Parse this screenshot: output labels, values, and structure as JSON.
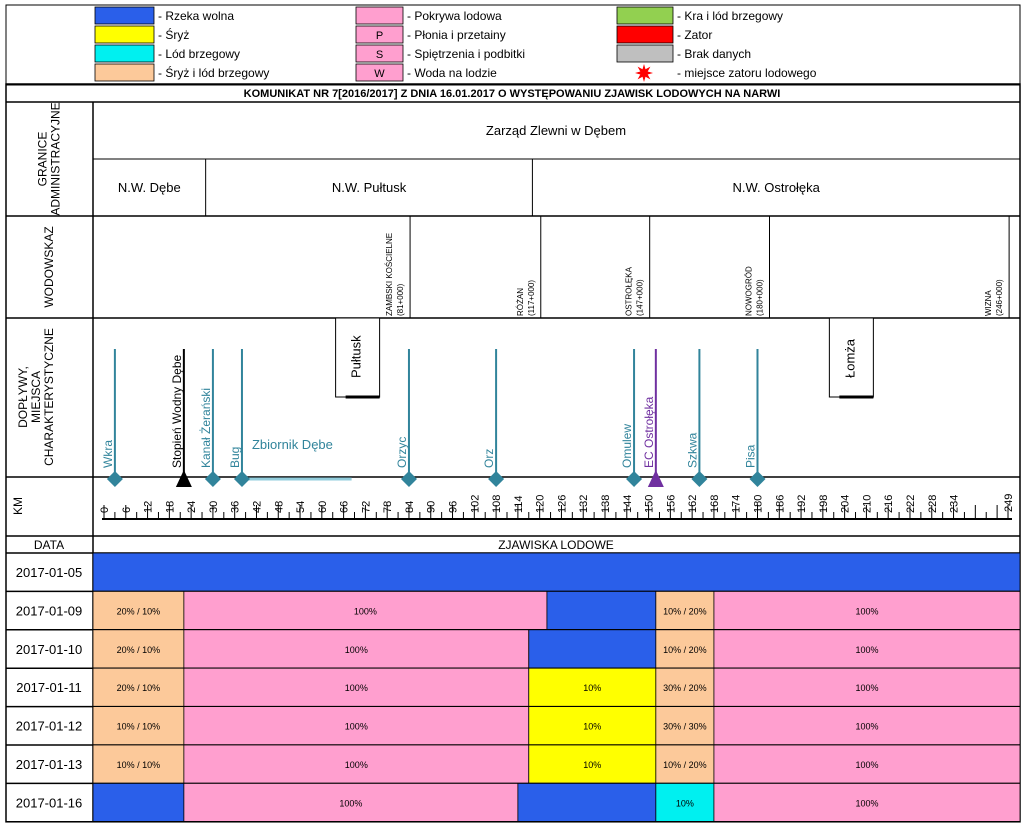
{
  "legend": [
    {
      "swatch": "",
      "color": "#2a5fea",
      "label": "- Rzeka wolna"
    },
    {
      "swatch": "",
      "color": "#ffff00",
      "label": "- Śryż"
    },
    {
      "swatch": "",
      "color": "#00f0f0",
      "label": "- Lód brzegowy"
    },
    {
      "swatch": "",
      "color": "#fcc99a",
      "label": "- Śryż i lód brzegowy"
    },
    {
      "swatch": "",
      "color": "#ff9fcf",
      "label": "- Pokrywa lodowa"
    },
    {
      "swatch": "P",
      "color": "#ff9fcf",
      "label": "- Płonia i przetainy"
    },
    {
      "swatch": "S",
      "color": "#ff9fcf",
      "label": "- Spiętrzenia i podbitki"
    },
    {
      "swatch": "W",
      "color": "#ff9fcf",
      "label": "- Woda na lodzie"
    },
    {
      "swatch": "",
      "color": "#92d050",
      "label": "- Kra i lód brzegowy"
    },
    {
      "swatch": "",
      "color": "#ff0000",
      "label": "- Zator"
    },
    {
      "swatch": "",
      "color": "#bfbfbf",
      "label": "- Brak danych"
    },
    {
      "swatch": "star",
      "color": "#ff0000",
      "label": "- miejsce zatoru lodowego"
    }
  ],
  "title": "KOMUNIKAT NR 7[2016/2017] Z DNIA 16.01.2017 O WYSTĘPOWANIU ZJAWISK LODOWYCH NA NARWI",
  "row_headers": {
    "granice": [
      "GRANICE",
      "ADMINISTRACYJNE"
    ],
    "wodowskaz": "WODOWSKAZ",
    "doplywy": [
      "DOPŁYWY,",
      "MIEJSCA",
      "CHARAKTERYSTYCZNE"
    ],
    "km": "KM",
    "data": "DATA",
    "zjawiska": "ZJAWISKA LODOWE"
  },
  "zarzad": "Zarząd Zlewni w Dębem",
  "nw_sections": [
    {
      "label": "N.W. Dębe",
      "from": 0,
      "to": 28
    },
    {
      "label": "N.W. Pułtusk",
      "from": 28,
      "to": 118
    },
    {
      "label": "N.W. Ostrołęka",
      "from": 118,
      "to": 249
    }
  ],
  "gauges": [
    {
      "name": "ZAMBSKI KOŚCIELNE",
      "chainage": "(81+000)",
      "km": 81
    },
    {
      "name": "RÓŻAN",
      "chainage": "(117+000)",
      "km": 117
    },
    {
      "name": "OSTROŁĘKA",
      "chainage": "(147+000)",
      "km": 147
    },
    {
      "name": "NOWOGRÓD",
      "chainage": "(180+000)",
      "km": 180
    },
    {
      "name": "WIZNA",
      "chainage": "(246+000)",
      "km": 246
    }
  ],
  "tributaries": [
    {
      "name": "Wkra",
      "km": 3,
      "type": "river"
    },
    {
      "name": "Stopień Wodny Dębe",
      "km": 22,
      "type": "dam"
    },
    {
      "name": "Kanał Żerański",
      "km": 30,
      "type": "river"
    },
    {
      "name": "Bug",
      "km": 38,
      "type": "river"
    },
    {
      "name": "Orzyc",
      "km": 84,
      "type": "river"
    },
    {
      "name": "Orz",
      "km": 108,
      "type": "river"
    },
    {
      "name": "Omulew",
      "km": 146,
      "type": "river"
    },
    {
      "name": "EC Ostrołęka",
      "km": 152,
      "type": "plant"
    },
    {
      "name": "Szkwa",
      "km": 164,
      "type": "river"
    },
    {
      "name": "Pisa",
      "km": 180,
      "type": "river"
    }
  ],
  "towns": [
    {
      "name": "Pułtusk",
      "km": 66
    },
    {
      "name": "Łomża",
      "km": 202
    }
  ],
  "reservoir": {
    "name": "Zbiornik Dębe",
    "from": 38,
    "to": 66
  },
  "chart_data": {
    "type": "table",
    "km_ticks": [
      0,
      6,
      12,
      18,
      24,
      30,
      36,
      42,
      48,
      54,
      60,
      66,
      72,
      78,
      84,
      90,
      96,
      102,
      108,
      114,
      120,
      126,
      132,
      138,
      144,
      150,
      156,
      162,
      168,
      174,
      180,
      186,
      192,
      198,
      204,
      210,
      216,
      222,
      228,
      234,
      249
    ],
    "xlim": [
      0,
      249
    ],
    "dates": [
      {
        "date": "2017-01-05",
        "segments": [
          {
            "from": 0,
            "to": 249,
            "color": "#2a5fea",
            "label": ""
          }
        ]
      },
      {
        "date": "2017-01-09",
        "segments": [
          {
            "from": 0,
            "to": 22,
            "color": "#fcc99a",
            "label": "20% / 10%"
          },
          {
            "from": 22,
            "to": 122,
            "color": "#ff9fcf",
            "label": "100%"
          },
          {
            "from": 122,
            "to": 152,
            "color": "#2a5fea",
            "label": ""
          },
          {
            "from": 152,
            "to": 168,
            "color": "#fcc99a",
            "label": "10% / 20%"
          },
          {
            "from": 168,
            "to": 249,
            "color": "#ff9fcf",
            "label": "100%"
          }
        ]
      },
      {
        "date": "2017-01-10",
        "segments": [
          {
            "from": 0,
            "to": 22,
            "color": "#fcc99a",
            "label": "20% / 10%"
          },
          {
            "from": 22,
            "to": 117,
            "color": "#ff9fcf",
            "label": "100%"
          },
          {
            "from": 117,
            "to": 152,
            "color": "#2a5fea",
            "label": ""
          },
          {
            "from": 152,
            "to": 168,
            "color": "#fcc99a",
            "label": "10% / 20%"
          },
          {
            "from": 168,
            "to": 249,
            "color": "#ff9fcf",
            "label": "100%"
          }
        ]
      },
      {
        "date": "2017-01-11",
        "segments": [
          {
            "from": 0,
            "to": 22,
            "color": "#fcc99a",
            "label": "20% / 10%"
          },
          {
            "from": 22,
            "to": 117,
            "color": "#ff9fcf",
            "label": "100%"
          },
          {
            "from": 117,
            "to": 152,
            "color": "#ffff00",
            "label": "10%"
          },
          {
            "from": 152,
            "to": 168,
            "color": "#fcc99a",
            "label": "30% / 20%"
          },
          {
            "from": 168,
            "to": 249,
            "color": "#ff9fcf",
            "label": "100%"
          }
        ]
      },
      {
        "date": "2017-01-12",
        "segments": [
          {
            "from": 0,
            "to": 22,
            "color": "#fcc99a",
            "label": "10% / 10%"
          },
          {
            "from": 22,
            "to": 117,
            "color": "#ff9fcf",
            "label": "100%"
          },
          {
            "from": 117,
            "to": 152,
            "color": "#ffff00",
            "label": "10%"
          },
          {
            "from": 152,
            "to": 168,
            "color": "#fcc99a",
            "label": "30% / 30%"
          },
          {
            "from": 168,
            "to": 249,
            "color": "#ff9fcf",
            "label": "100%"
          }
        ]
      },
      {
        "date": "2017-01-13",
        "segments": [
          {
            "from": 0,
            "to": 22,
            "color": "#fcc99a",
            "label": "10% / 10%"
          },
          {
            "from": 22,
            "to": 117,
            "color": "#ff9fcf",
            "label": "100%"
          },
          {
            "from": 117,
            "to": 152,
            "color": "#ffff00",
            "label": "10%"
          },
          {
            "from": 152,
            "to": 168,
            "color": "#fcc99a",
            "label": "10% / 20%"
          },
          {
            "from": 168,
            "to": 249,
            "color": "#ff9fcf",
            "label": "100%"
          }
        ]
      },
      {
        "date": "2017-01-16",
        "segments": [
          {
            "from": 0,
            "to": 22,
            "color": "#2a5fea",
            "label": ""
          },
          {
            "from": 22,
            "to": 114,
            "color": "#ff9fcf",
            "label": "100%"
          },
          {
            "from": 114,
            "to": 152,
            "color": "#2a5fea",
            "label": ""
          },
          {
            "from": 152,
            "to": 168,
            "color": "#00f0f0",
            "label": "10%"
          },
          {
            "from": 168,
            "to": 249,
            "color": "#ff9fcf",
            "label": "100%"
          }
        ]
      }
    ]
  }
}
